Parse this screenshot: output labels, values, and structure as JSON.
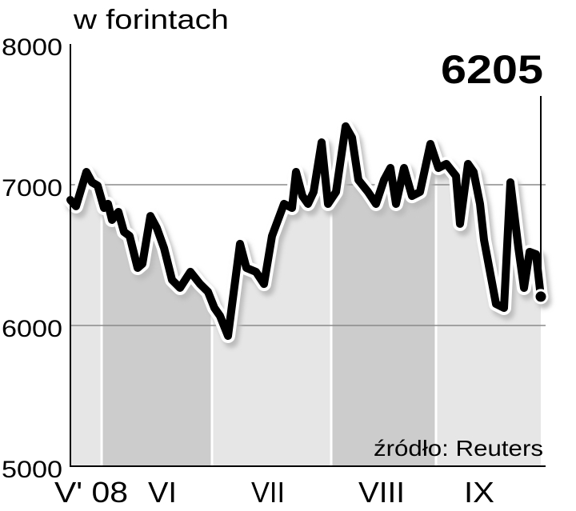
{
  "chart_data": {
    "type": "line",
    "title": "w forintach",
    "ylabel": "w forintach",
    "xlabel": "",
    "ylim": [
      5000,
      8000
    ],
    "yticks": [
      "8000",
      "7000",
      "6000",
      "5000"
    ],
    "xticks": [
      "V' 08",
      "VI",
      "VII",
      "VIII",
      "IX"
    ],
    "grid": true,
    "last_value_label": "6205",
    "source": "źródło: Reuters",
    "colors": {
      "line": "#000000",
      "band_light": "#e6e6e6",
      "band_dark": "#cccccc",
      "grid": "#8a8a8a"
    },
    "values": [
      6892,
      6847,
      7091,
      7017,
      6994,
      6835,
      6864,
      6750,
      6807,
      6665,
      6636,
      6409,
      6438,
      6778,
      6693,
      6551,
      6324,
      6267,
      6381,
      6295,
      6239,
      6125,
      6068,
      5926,
      6580,
      6409,
      6381,
      6295,
      6636,
      6864,
      6835,
      7091,
      6920,
      6864,
      6949,
      7301,
      6864,
      6949,
      7415,
      7335,
      7034,
      6949,
      6864,
      7034,
      7119,
      6864,
      7119,
      6920,
      6949,
      7290,
      7119,
      7148,
      7062,
      6722,
      7148,
      7091,
      6864,
      6608,
      6153,
      6125,
      7017,
      6551,
      6267,
      6523,
      6506,
      6205
    ]
  }
}
